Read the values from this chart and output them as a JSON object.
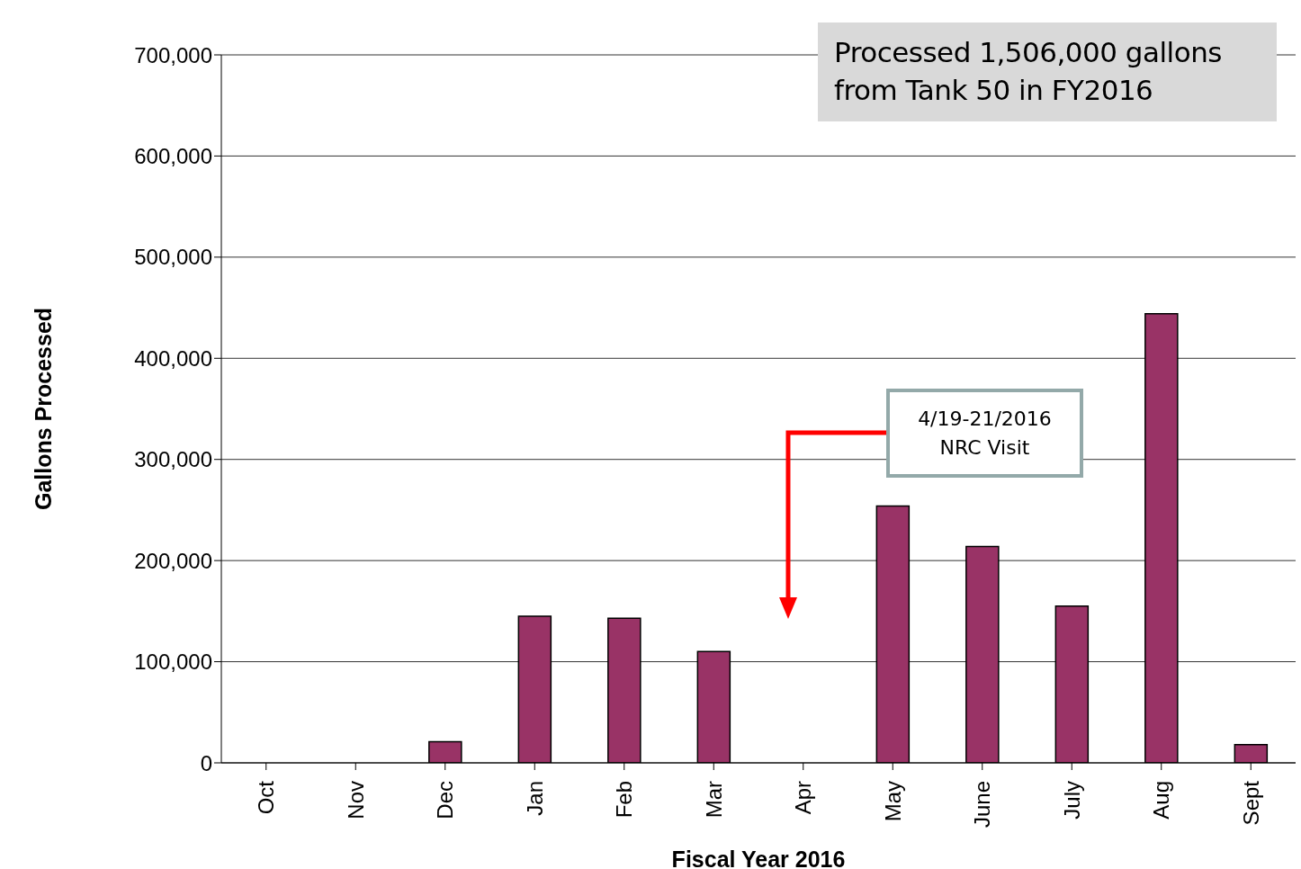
{
  "chart_data": {
    "type": "bar",
    "xlabel": "Fiscal Year 2016",
    "ylabel": "Gallons Processed",
    "categories": [
      "Oct",
      "Nov",
      "Dec",
      "Jan",
      "Feb",
      "Mar",
      "Apr",
      "May",
      "June",
      "July",
      "Aug",
      "Sept"
    ],
    "values": [
      0,
      0,
      21000,
      145000,
      143000,
      110000,
      0,
      254000,
      214000,
      155000,
      444000,
      18000
    ],
    "color": "#993366",
    "ylim": [
      0,
      700000
    ],
    "yticks": [
      0,
      {
        "value": 100000,
        "label": "100,000"
      },
      {
        "value": 200000,
        "label": "200,000"
      },
      {
        "value": 300000,
        "label": "300,000"
      },
      {
        "value": 400000,
        "label": "400,000"
      },
      {
        "value": 500000,
        "label": "500,000"
      },
      {
        "value": 600000,
        "label": "600,000"
      },
      {
        "value": 700000,
        "label": "700,000"
      }
    ],
    "grid": "y",
    "annotations": [
      "Processed 1,506,000 gallons from Tank 50 in FY2016",
      "4/19-21/2016\nNRC Visit"
    ]
  }
}
